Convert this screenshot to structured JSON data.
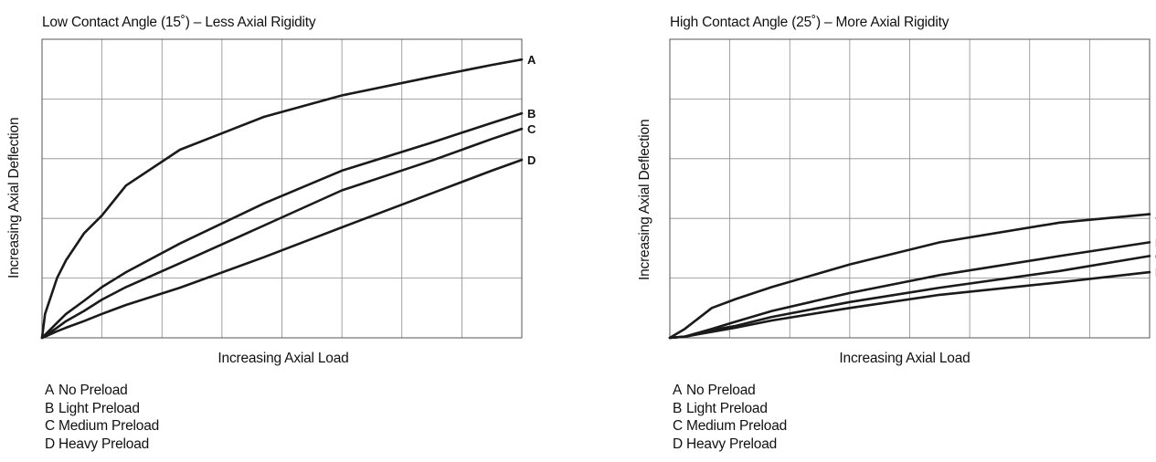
{
  "chart_data": [
    {
      "type": "line",
      "title": "Low Contact Angle (15˚) – Less Axial Rigidity",
      "xlabel": "Increasing Axial Load",
      "ylabel": "Increasing Axial Deflection",
      "xlim": [
        0,
        8
      ],
      "ylim": [
        0,
        5
      ],
      "grid": true,
      "x": [
        0,
        0.05,
        0.25,
        0.4,
        0.7,
        1.0,
        1.4,
        2.3,
        3.7,
        5.0,
        6.5,
        7.5,
        8.0
      ],
      "series": [
        {
          "name": "A",
          "values": [
            0,
            0.4,
            1.0,
            1.3,
            1.75,
            2.05,
            2.55,
            3.15,
            3.7,
            4.06,
            4.37,
            4.57,
            4.66
          ]
        },
        {
          "name": "B",
          "values": [
            0,
            0.05,
            0.25,
            0.4,
            0.62,
            0.85,
            1.1,
            1.58,
            2.25,
            2.8,
            3.27,
            3.6,
            3.76
          ]
        },
        {
          "name": "C",
          "values": [
            0,
            0.03,
            0.17,
            0.28,
            0.45,
            0.64,
            0.85,
            1.25,
            1.88,
            2.47,
            2.97,
            3.33,
            3.5
          ]
        },
        {
          "name": "D",
          "values": [
            0,
            0.02,
            0.11,
            0.17,
            0.28,
            0.4,
            0.55,
            0.84,
            1.35,
            1.85,
            2.42,
            2.8,
            2.98
          ]
        }
      ],
      "legend": [
        {
          "key": "A",
          "label": "No Preload"
        },
        {
          "key": "B",
          "label": "Light Preload"
        },
        {
          "key": "C",
          "label": "Medium Preload"
        },
        {
          "key": "D",
          "label": "Heavy Preload"
        }
      ]
    },
    {
      "type": "line",
      "title": "High Contact Angle (25˚) – More Axial Rigidity",
      "xlabel": "Increasing Axial Load",
      "ylabel": "Increasing Axial Deflection",
      "xlim": [
        0,
        8
      ],
      "ylim": [
        0,
        5
      ],
      "grid": true,
      "x": [
        0,
        0.25,
        0.7,
        1.1,
        1.7,
        3.0,
        4.5,
        6.5,
        8.0
      ],
      "series": [
        {
          "name": "A",
          "values": [
            0,
            0.15,
            0.5,
            0.65,
            0.85,
            1.23,
            1.6,
            1.93,
            2.07
          ]
        },
        {
          "name": "B",
          "values": [
            0,
            0.02,
            0.15,
            0.27,
            0.45,
            0.75,
            1.05,
            1.37,
            1.6
          ]
        },
        {
          "name": "C",
          "values": [
            0,
            0.02,
            0.13,
            0.2,
            0.35,
            0.6,
            0.84,
            1.12,
            1.37
          ]
        },
        {
          "name": "D",
          "values": [
            0,
            0.02,
            0.1,
            0.17,
            0.29,
            0.5,
            0.72,
            0.93,
            1.1
          ]
        }
      ],
      "legend": [
        {
          "key": "A",
          "label": "No Preload"
        },
        {
          "key": "B",
          "label": "Light Preload"
        },
        {
          "key": "C",
          "label": "Medium Preload"
        },
        {
          "key": "D",
          "label": "Heavy Preload"
        }
      ]
    }
  ]
}
